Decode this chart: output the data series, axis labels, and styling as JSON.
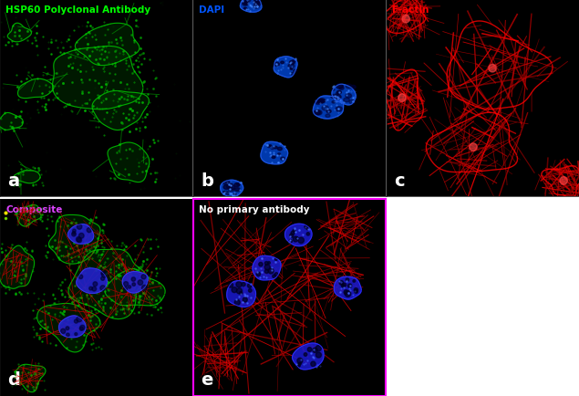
{
  "panels": [
    {
      "label": "a",
      "title": "HSP60 Polyclonal Antibody",
      "title_color": "#00ff00",
      "bg": "#000000",
      "border_color": null,
      "row": 0,
      "col": 0
    },
    {
      "label": "b",
      "title": "DAPI",
      "title_color": "#0055ff",
      "bg": "#000000",
      "border_color": null,
      "row": 0,
      "col": 1
    },
    {
      "label": "c",
      "title": "F-actin",
      "title_color": "#ff0000",
      "bg": "#000000",
      "border_color": null,
      "row": 0,
      "col": 2
    },
    {
      "label": "d",
      "title": "Composite",
      "title_color": "#dd44ff",
      "bg": "#000000",
      "border_color": null,
      "row": 1,
      "col": 0
    },
    {
      "label": "e",
      "title": "No primary antibody",
      "title_color": "#ffffff",
      "bg": "#000000",
      "border_color": "#ff00ff",
      "row": 1,
      "col": 1
    }
  ],
  "label_color": "#ffffff",
  "label_fontsize": 14,
  "title_fontsize": 7.5,
  "fig_bg": "#ffffff",
  "figsize": [
    6.35,
    4.35
  ]
}
